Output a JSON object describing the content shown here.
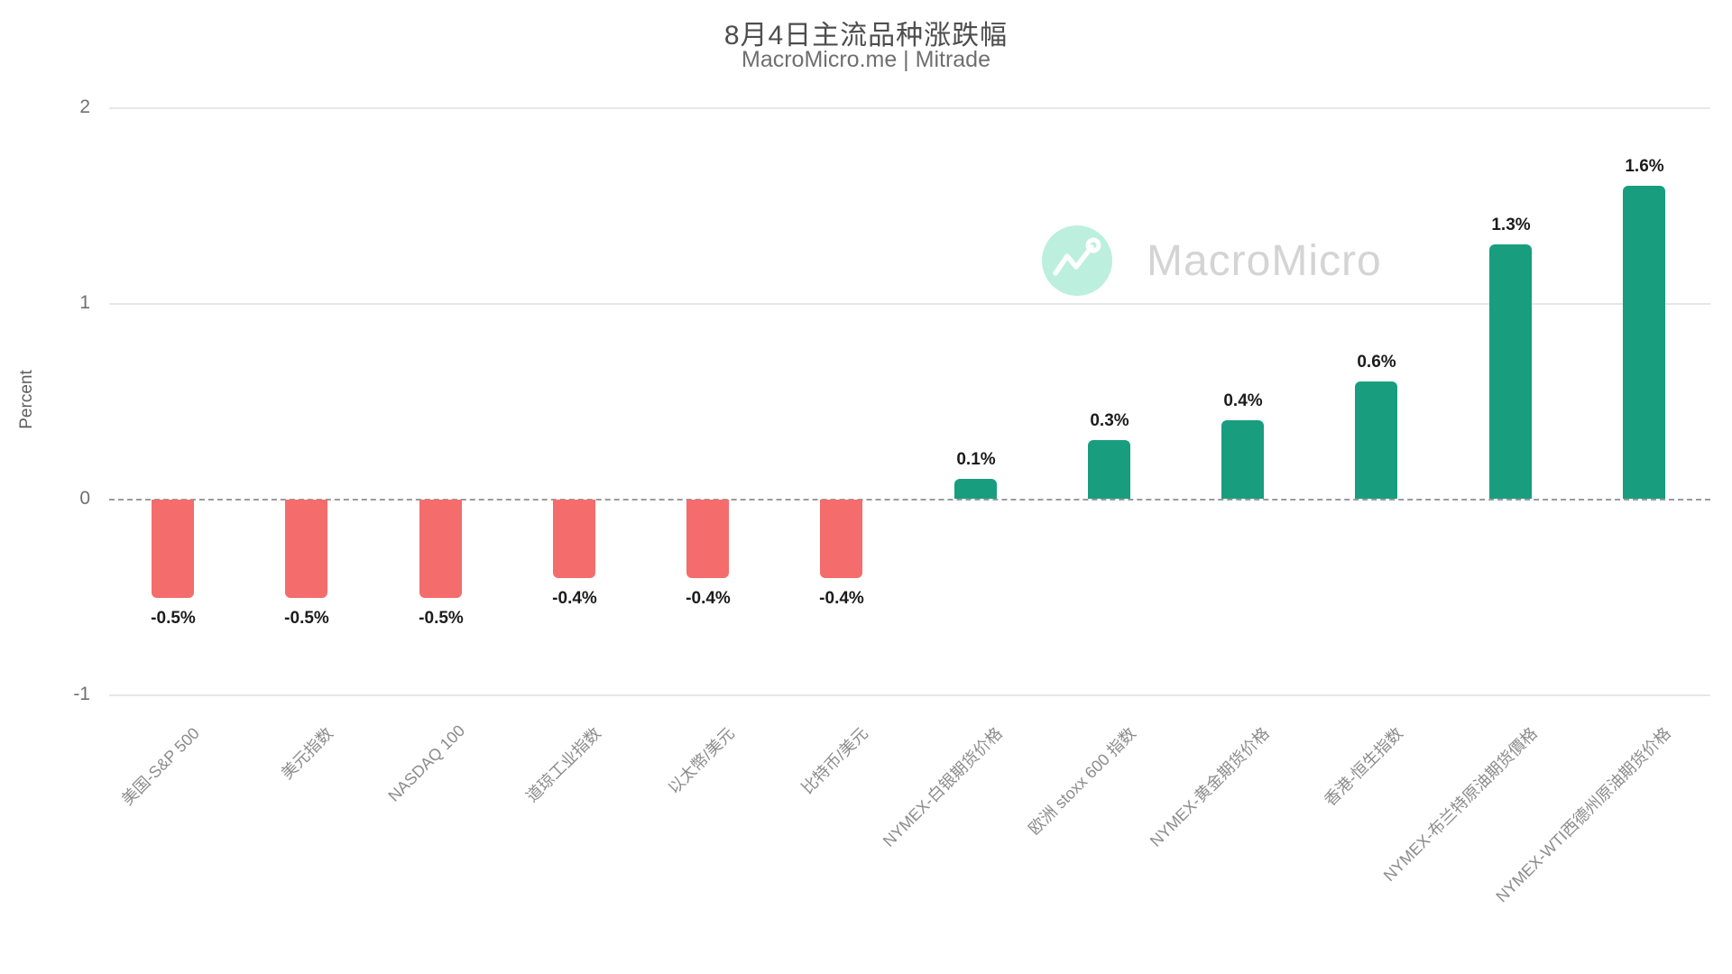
{
  "page": {
    "title": "8月4日主流品种涨跌幅",
    "subtitle": "MacroMicro.me | Mitrade"
  },
  "watermark": {
    "brand": "MacroMicro",
    "icon": "macromicro-line-chart-icon",
    "circle_color": "#b9efdc",
    "text_color": "#d2d2d2"
  },
  "chart_data": {
    "type": "bar",
    "title": "8月4日主流品种涨跌幅",
    "subtitle": "MacroMicro.me | Mitrade",
    "xlabel": "",
    "ylabel": "Percent",
    "ylim": [
      -1,
      2
    ],
    "yticks": [
      2,
      1,
      0,
      -1
    ],
    "grid": "horizontal-light",
    "zero_line": "dashed-gray",
    "legend": "none",
    "categories": [
      "美国-S&P 500",
      "美元指数",
      "NASDAQ 100",
      "道琼工业指数",
      "以太幣/美元",
      "比特币/美元",
      "NYMEX-白银期货价格",
      "欧洲 stoxx 600 指数",
      "NYMEX-黄金期货价格",
      "香港-恒生指数",
      "NYMEX-布兰特原油期货價格",
      "NYMEX-WTI西德州原油期货价格"
    ],
    "values": [
      -0.5,
      -0.5,
      -0.5,
      -0.4,
      -0.4,
      -0.4,
      0.1,
      0.3,
      0.4,
      0.6,
      1.3,
      1.6
    ],
    "bar_labels": [
      "-0.5%",
      "-0.5%",
      "-0.5%",
      "-0.4%",
      "-0.4%",
      "-0.4%",
      "0.1%",
      "0.3%",
      "0.4%",
      "0.6%",
      "1.3%",
      "1.6%"
    ],
    "colors": {
      "positive": "#189e7f",
      "negative": "#f56c6c"
    }
  }
}
